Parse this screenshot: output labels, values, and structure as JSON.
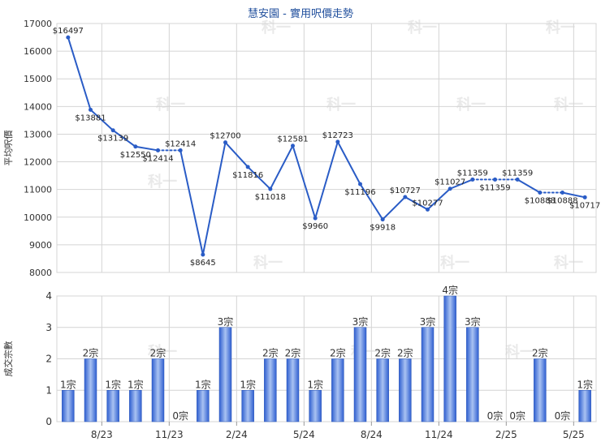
{
  "title": "慧安園 - 實用呎價走勢",
  "watermark": "科一",
  "colors": {
    "line": "#2a5cc6",
    "bar_top": "#2f5fd0",
    "bar_mid": "#9bb8ef",
    "grid": "#d4d4d4",
    "axis": "#999999"
  },
  "chart_data": [
    {
      "type": "line",
      "ylabel": "平均呎價",
      "ylim": [
        8000,
        17000
      ],
      "yticks": [
        8000,
        9000,
        10000,
        11000,
        12000,
        13000,
        14000,
        15000,
        16000,
        17000
      ],
      "grid": true,
      "series": [
        {
          "values": [
            16497,
            13881,
            13139,
            12550,
            12414,
            12414,
            8645,
            12700,
            11816,
            11018,
            12581,
            9960,
            12723,
            11196,
            9918,
            10727,
            10277,
            11027,
            11359,
            11359,
            11359,
            10888,
            10888,
            10717
          ],
          "labels": [
            "$16497",
            "$13881",
            "$13139",
            "$12550",
            "$12414",
            "$12414",
            "$8645",
            "$12700",
            "$11816",
            "$11018",
            "$12581",
            "$9960",
            "$12723",
            "$11196",
            "$9918",
            "$10727",
            "$10277",
            "$11027",
            "$11359",
            "$11359",
            "$11359",
            "$10888",
            "$10888",
            "$10717"
          ],
          "dotted_segments": [
            4,
            18,
            19,
            21
          ]
        }
      ]
    },
    {
      "type": "bar",
      "ylabel": "成交宗數",
      "ylim": [
        0,
        4
      ],
      "yticks": [
        0,
        1,
        2,
        3,
        4
      ],
      "grid": true,
      "x_tick_labels": [
        "8/23",
        "11/23",
        "2/24",
        "5/24",
        "8/24",
        "11/24",
        "2/25",
        "5/25"
      ],
      "values": [
        1,
        2,
        1,
        1,
        2,
        0,
        1,
        3,
        1,
        2,
        2,
        1,
        2,
        3,
        2,
        2,
        3,
        4,
        3,
        0,
        0,
        2,
        0,
        1
      ],
      "labels": [
        "1宗",
        "2宗",
        "1宗",
        "1宗",
        "2宗",
        "0宗",
        "1宗",
        "3宗",
        "1宗",
        "2宗",
        "2宗",
        "1宗",
        "2宗",
        "3宗",
        "2宗",
        "2宗",
        "3宗",
        "4宗",
        "3宗",
        "0宗",
        "0宗",
        "2宗",
        "0宗",
        "1宗"
      ]
    }
  ]
}
